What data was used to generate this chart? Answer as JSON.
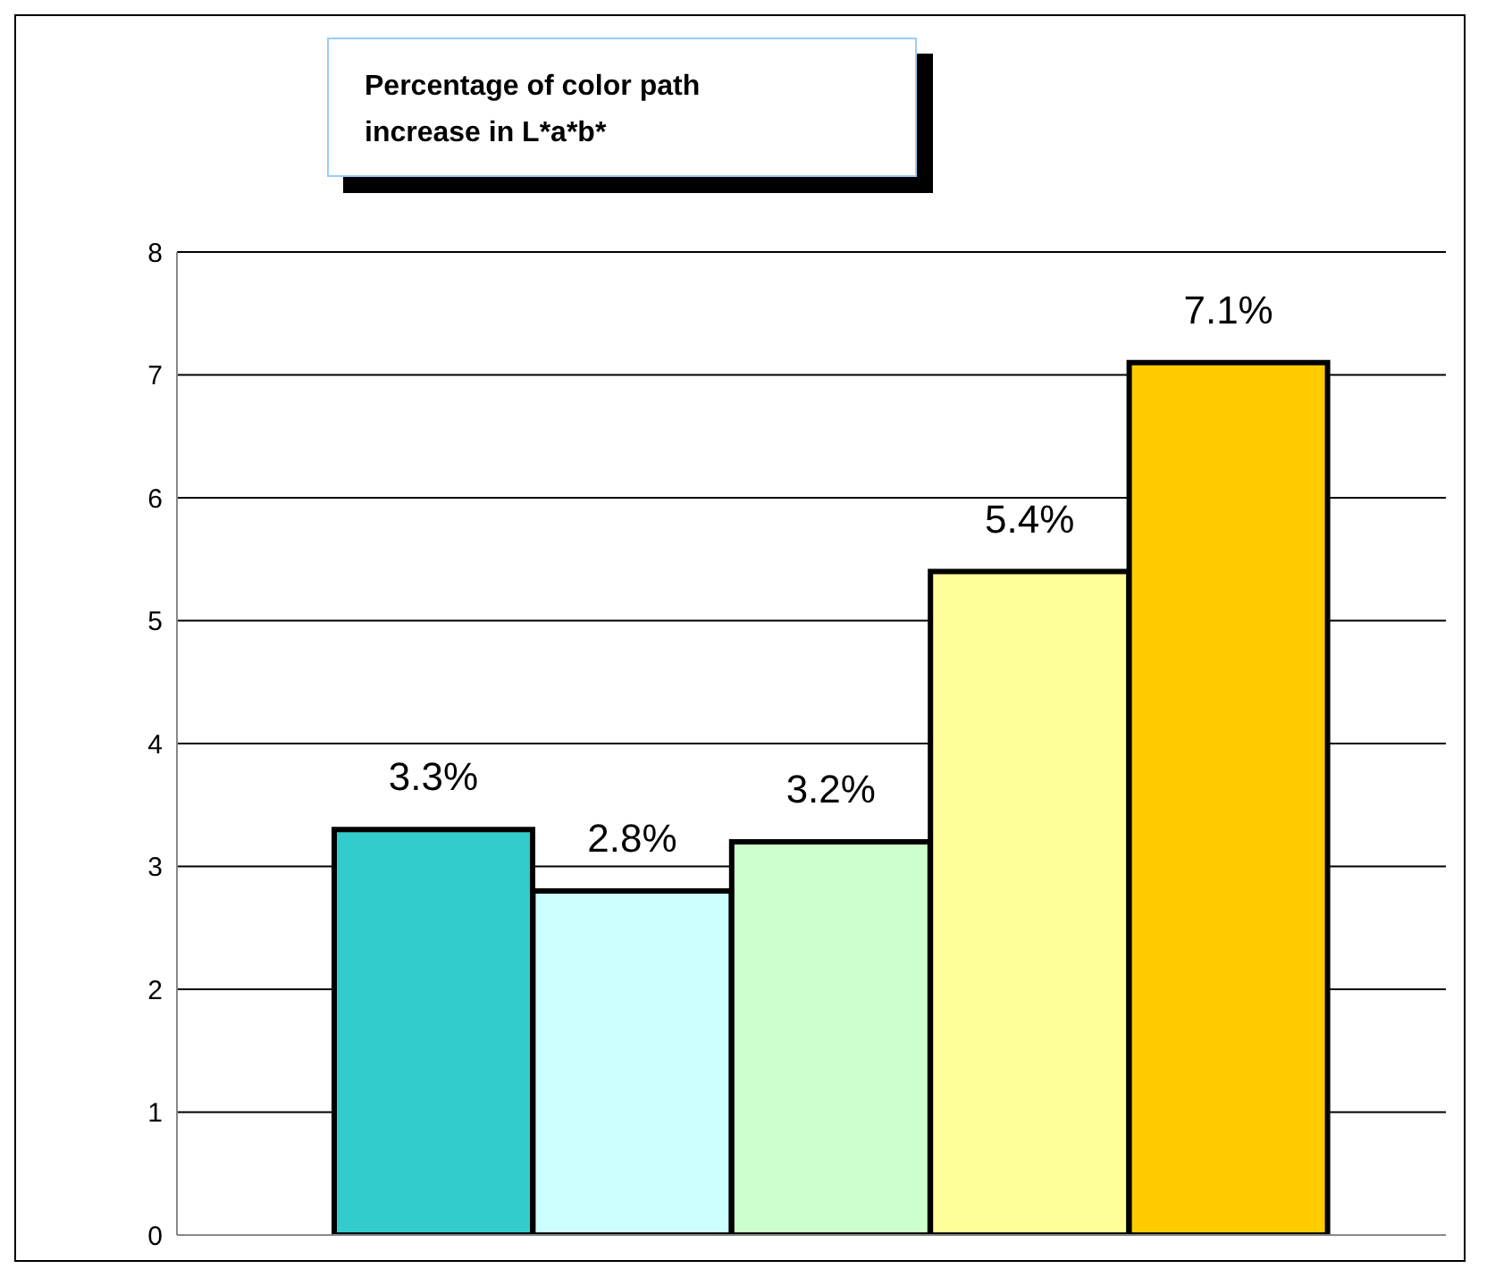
{
  "chart_data": {
    "type": "bar",
    "title": "Percentage of color path increase in L*a*b*",
    "categories": [
      null,
      null,
      null,
      null,
      null
    ],
    "values": [
      3.3,
      2.8,
      3.2,
      5.4,
      7.1
    ],
    "colors": [
      "#33cccc",
      "#ccffff",
      "#ccffcc",
      "#ffff99",
      "#ffcc00"
    ],
    "value_labels": [
      "3.3%",
      "2.8%",
      "3.2%",
      "5.4%",
      "7.1%"
    ],
    "ylim": [
      0,
      8
    ],
    "yticks": [
      0,
      1,
      2,
      3,
      4,
      5,
      6,
      7,
      8
    ],
    "grid": "y"
  }
}
